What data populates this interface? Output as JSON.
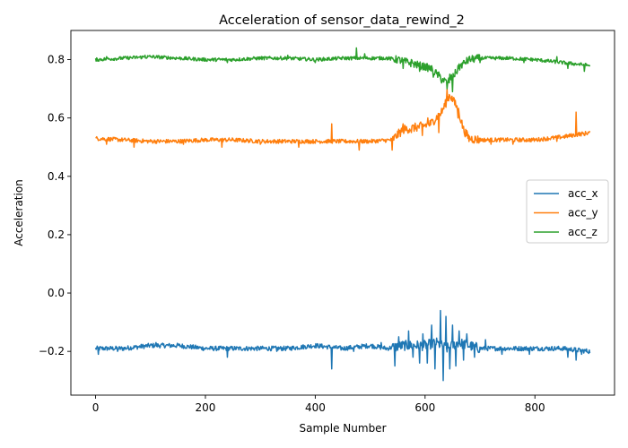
{
  "chart_data": {
    "type": "line",
    "title": "Acceleration of sensor_data_rewind_2",
    "xlabel": "Sample Number",
    "ylabel": "Acceleration",
    "xlim": [
      -45,
      945
    ],
    "ylim": [
      -0.35,
      0.9
    ],
    "x_ticks": [
      0,
      200,
      400,
      600,
      800
    ],
    "y_ticks": [
      -0.2,
      0.0,
      0.2,
      0.4,
      0.6,
      0.8
    ],
    "y_tick_labels": [
      "−0.2",
      "0.0",
      "0.2",
      "0.4",
      "0.6",
      "0.8"
    ],
    "legend_position": "center-right",
    "grid": false,
    "series": [
      {
        "name": "acc_x",
        "color": "#1f77b4",
        "anchors": [
          [
            0,
            -0.19
          ],
          [
            50,
            -0.19
          ],
          [
            100,
            -0.18
          ],
          [
            150,
            -0.18
          ],
          [
            200,
            -0.19
          ],
          [
            250,
            -0.19
          ],
          [
            300,
            -0.19
          ],
          [
            350,
            -0.19
          ],
          [
            400,
            -0.18
          ],
          [
            450,
            -0.19
          ],
          [
            500,
            -0.18
          ],
          [
            530,
            -0.19
          ],
          [
            560,
            -0.18
          ],
          [
            600,
            -0.18
          ],
          [
            620,
            -0.17
          ],
          [
            640,
            -0.19
          ],
          [
            660,
            -0.17
          ],
          [
            680,
            -0.18
          ],
          [
            700,
            -0.19
          ],
          [
            750,
            -0.19
          ],
          [
            800,
            -0.19
          ],
          [
            850,
            -0.19
          ],
          [
            900,
            -0.2
          ]
        ],
        "noise": 0.008,
        "spikes": [
          [
            5,
            -0.21
          ],
          [
            40,
            -0.2
          ],
          [
            110,
            -0.17
          ],
          [
            240,
            -0.22
          ],
          [
            330,
            -0.2
          ],
          [
            430,
            -0.26
          ],
          [
            470,
            -0.2
          ],
          [
            520,
            -0.17
          ],
          [
            545,
            -0.25
          ],
          [
            552,
            -0.15
          ],
          [
            570,
            -0.13
          ],
          [
            578,
            -0.22
          ],
          [
            590,
            -0.24
          ],
          [
            596,
            -0.14
          ],
          [
            604,
            -0.24
          ],
          [
            612,
            -0.11
          ],
          [
            618,
            -0.26
          ],
          [
            624,
            -0.17
          ],
          [
            628,
            -0.06
          ],
          [
            633,
            -0.3
          ],
          [
            638,
            -0.08
          ],
          [
            645,
            -0.26
          ],
          [
            650,
            -0.11
          ],
          [
            656,
            -0.25
          ],
          [
            662,
            -0.13
          ],
          [
            670,
            -0.23
          ],
          [
            676,
            -0.14
          ],
          [
            690,
            -0.22
          ],
          [
            710,
            -0.16
          ],
          [
            740,
            -0.21
          ],
          [
            790,
            -0.21
          ],
          [
            860,
            -0.22
          ],
          [
            875,
            -0.23
          ],
          [
            885,
            -0.21
          ]
        ]
      },
      {
        "name": "acc_y",
        "color": "#ff7f0e",
        "anchors": [
          [
            0,
            0.53
          ],
          [
            50,
            0.525
          ],
          [
            100,
            0.52
          ],
          [
            150,
            0.52
          ],
          [
            200,
            0.525
          ],
          [
            250,
            0.525
          ],
          [
            300,
            0.52
          ],
          [
            350,
            0.52
          ],
          [
            400,
            0.52
          ],
          [
            450,
            0.52
          ],
          [
            500,
            0.52
          ],
          [
            540,
            0.525
          ],
          [
            560,
            0.56
          ],
          [
            590,
            0.57
          ],
          [
            610,
            0.58
          ],
          [
            630,
            0.62
          ],
          [
            645,
            0.68
          ],
          [
            660,
            0.63
          ],
          [
            670,
            0.56
          ],
          [
            680,
            0.53
          ],
          [
            700,
            0.525
          ],
          [
            750,
            0.525
          ],
          [
            800,
            0.525
          ],
          [
            850,
            0.535
          ],
          [
            900,
            0.55
          ]
        ],
        "noise": 0.007,
        "spikes": [
          [
            20,
            0.51
          ],
          [
            70,
            0.5
          ],
          [
            160,
            0.51
          ],
          [
            230,
            0.5
          ],
          [
            300,
            0.51
          ],
          [
            370,
            0.5
          ],
          [
            430,
            0.58
          ],
          [
            480,
            0.49
          ],
          [
            540,
            0.49
          ],
          [
            560,
            0.58
          ],
          [
            575,
            0.55
          ],
          [
            595,
            0.54
          ],
          [
            605,
            0.6
          ],
          [
            625,
            0.55
          ],
          [
            640,
            0.7
          ],
          [
            652,
            0.67
          ],
          [
            660,
            0.6
          ],
          [
            720,
            0.51
          ],
          [
            760,
            0.51
          ],
          [
            840,
            0.52
          ],
          [
            875,
            0.62
          ],
          [
            880,
            0.55
          ],
          [
            890,
            0.54
          ]
        ]
      },
      {
        "name": "acc_z",
        "color": "#2ca02c",
        "anchors": [
          [
            0,
            0.8
          ],
          [
            50,
            0.805
          ],
          [
            100,
            0.81
          ],
          [
            150,
            0.805
          ],
          [
            200,
            0.8
          ],
          [
            250,
            0.8
          ],
          [
            300,
            0.805
          ],
          [
            350,
            0.805
          ],
          [
            400,
            0.8
          ],
          [
            450,
            0.805
          ],
          [
            500,
            0.805
          ],
          [
            530,
            0.805
          ],
          [
            550,
            0.8
          ],
          [
            570,
            0.79
          ],
          [
            590,
            0.78
          ],
          [
            610,
            0.77
          ],
          [
            625,
            0.745
          ],
          [
            640,
            0.72
          ],
          [
            650,
            0.74
          ],
          [
            665,
            0.78
          ],
          [
            680,
            0.8
          ],
          [
            700,
            0.805
          ],
          [
            750,
            0.805
          ],
          [
            800,
            0.8
          ],
          [
            850,
            0.79
          ],
          [
            900,
            0.78
          ]
        ],
        "noise": 0.006,
        "spikes": [
          [
            20,
            0.81
          ],
          [
            90,
            0.815
          ],
          [
            240,
            0.79
          ],
          [
            350,
            0.815
          ],
          [
            400,
            0.79
          ],
          [
            475,
            0.84
          ],
          [
            490,
            0.82
          ],
          [
            560,
            0.77
          ],
          [
            575,
            0.8
          ],
          [
            590,
            0.76
          ],
          [
            615,
            0.74
          ],
          [
            630,
            0.72
          ],
          [
            640,
            0.7
          ],
          [
            645,
            0.75
          ],
          [
            650,
            0.69
          ],
          [
            660,
            0.78
          ],
          [
            700,
            0.79
          ],
          [
            780,
            0.79
          ],
          [
            840,
            0.81
          ],
          [
            860,
            0.77
          ],
          [
            890,
            0.76
          ]
        ]
      }
    ]
  }
}
